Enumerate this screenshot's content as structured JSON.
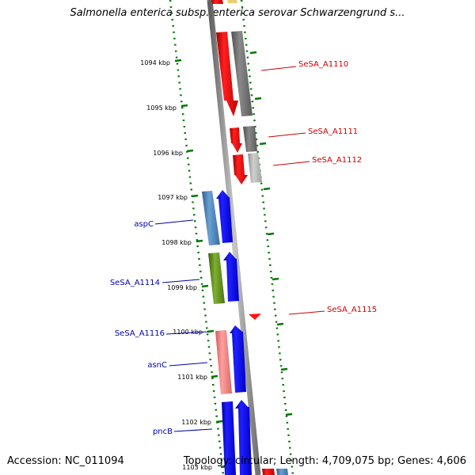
{
  "title": "Salmonella enterica subsp. enterica serovar Schwarzengrund s...",
  "footer": {
    "accession": "Accession: NC_011094",
    "stats": "Topology: circular; Length: 4,709,075 bp; Genes: 4,606"
  },
  "ruler": {
    "unit": "kbp",
    "ticks": [
      {
        "kbp": 1094,
        "label": "1094 kbp"
      },
      {
        "kbp": 1095,
        "label": "1095 kbp"
      },
      {
        "kbp": 1096,
        "label": "1096 kbp"
      },
      {
        "kbp": 1097,
        "label": "1097 kbp"
      },
      {
        "kbp": 1098,
        "label": "1098 kbp"
      },
      {
        "kbp": 1099,
        "label": "1099 kbp"
      },
      {
        "kbp": 1100,
        "label": "1100 kbp"
      },
      {
        "kbp": 1101,
        "label": "1101 kbp"
      },
      {
        "kbp": 1102,
        "label": "1102 kbp"
      },
      {
        "kbp": 1103,
        "label": "1103 kbp"
      }
    ]
  },
  "gene_labels": {
    "forward": [
      "SeSA_A1110",
      "SeSA_A1111",
      "SeSA_A1112",
      "SeSA_A1115"
    ],
    "reverse": [
      "aspC",
      "SeSA_A1114",
      "SeSA_A1116",
      "asnC",
      "pncB"
    ]
  },
  "colors": {
    "forward_label": "#cc0000",
    "reverse_label": "#0000aa",
    "forward_cds": "#ff0000",
    "reverse_cds": "#0000ff",
    "tick": "#007700",
    "backbone": "#888888"
  }
}
